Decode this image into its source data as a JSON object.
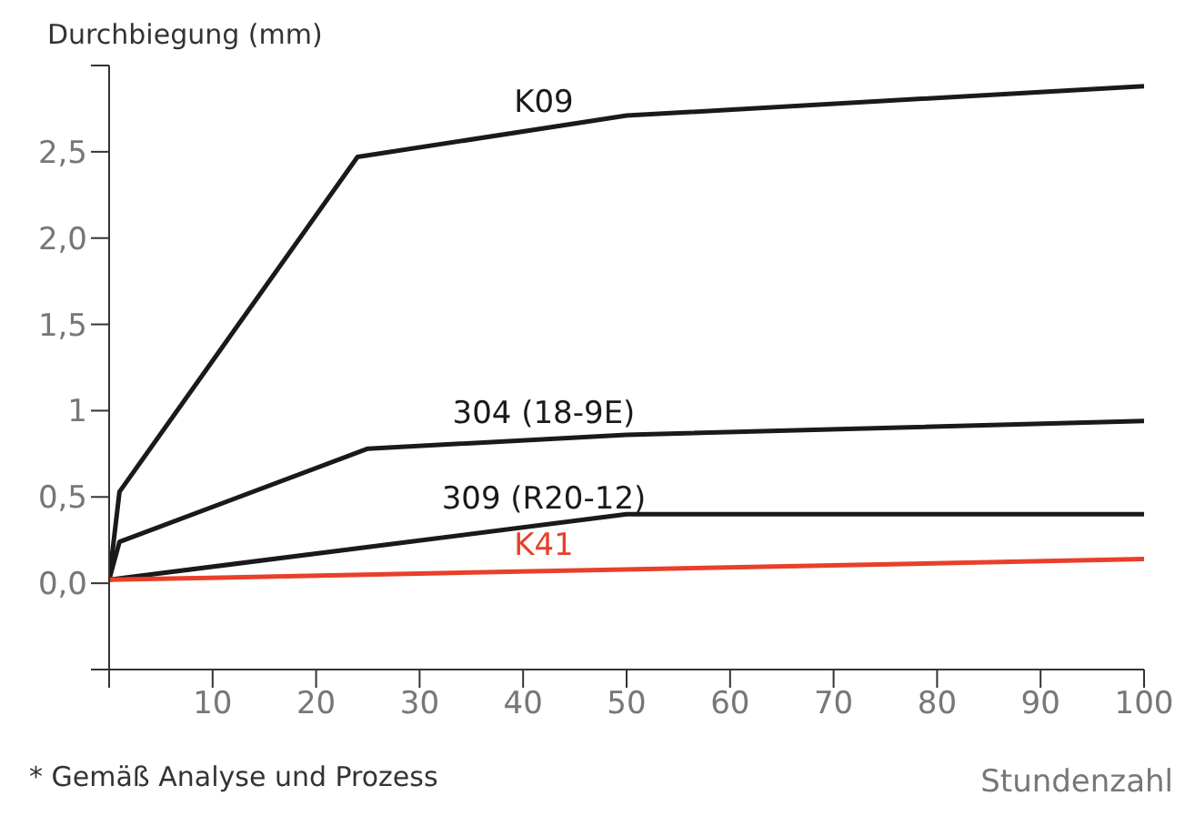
{
  "chart_data": {
    "type": "line",
    "ylabel": "Durchbiegung (mm)",
    "xlabel": "Stundenzahl",
    "annotations": [
      "* Gemäß Analyse und Prozess"
    ],
    "xlim": [
      0,
      100
    ],
    "xticks": [
      {
        "value": 0,
        "label": null
      },
      10,
      20,
      30,
      40,
      50,
      60,
      70,
      80,
      90,
      100
    ],
    "ylim": [
      -0.5,
      3.0
    ],
    "yticks": [
      {
        "value": -0.5,
        "label": null
      },
      {
        "value": 0,
        "label": "0,0"
      },
      {
        "value": 0.5,
        "label": "0,5"
      },
      {
        "value": 1,
        "label": "1"
      },
      {
        "value": 1.5,
        "label": "1,5"
      },
      {
        "value": 2,
        "label": "2,0"
      },
      {
        "value": 2.5,
        "label": "2,5"
      },
      {
        "value": 3,
        "label": null
      }
    ],
    "marker": "none",
    "line_style": "solid",
    "series": [
      {
        "name": "K09",
        "color": "#1a1a1a",
        "x": [
          0,
          1,
          24,
          50,
          100
        ],
        "values": [
          0.02,
          0.53,
          2.47,
          2.71,
          2.88
        ]
      },
      {
        "name": "304 (18-9E)",
        "color": "#1a1a1a",
        "x": [
          0,
          1,
          25,
          50,
          100
        ],
        "values": [
          0.02,
          0.24,
          0.78,
          0.86,
          0.94
        ]
      },
      {
        "name": "309 (R20-12)",
        "color": "#1a1a1a",
        "x": [
          0,
          50,
          100
        ],
        "values": [
          0.02,
          0.4,
          0.4
        ]
      },
      {
        "name": "K41",
        "color": "#e8402a",
        "x": [
          0,
          100
        ],
        "values": [
          0.02,
          0.14
        ]
      }
    ]
  }
}
